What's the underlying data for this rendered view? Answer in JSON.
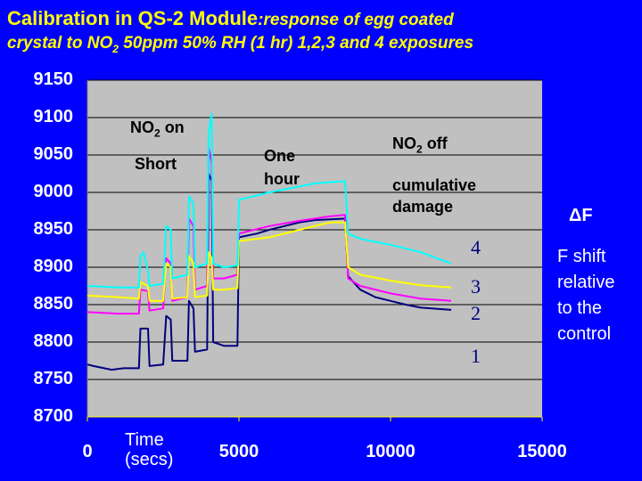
{
  "header": {
    "title_main": "Calibration in QS-2 Module",
    "title_sub": ":response of egg coated",
    "line2_a": "crystal to NO",
    "line2_sub": "2",
    "line2_b": " 50ppm 50% RH (1 hr) 1,2,3 and 4 exposures"
  },
  "annotations": {
    "no2_on_a": "NO",
    "no2_on_sub": "2",
    "no2_on_b": " on",
    "short": "Short",
    "one": "One",
    "hour": "hour",
    "no2_off_a": "NO",
    "no2_off_sub": "2",
    "no2_off_b": " off",
    "cumulative": "cumulative",
    "damage": "damage",
    "series_4": "4",
    "series_3": "3",
    "series_2": "2",
    "series_1": "1"
  },
  "side_note": {
    "delta_f": "ΔF",
    "line1": "F shift",
    "line2": "relative",
    "line3": "to the",
    "line4": "control"
  },
  "x_axis_title": {
    "line1": "Time",
    "line2": "(secs)"
  },
  "colors": {
    "background": "#0000ff",
    "plot_area": "#c0c0c0",
    "title": "#ffff00",
    "series_1": "#000080",
    "series_2": "#ff00ff",
    "series_3": "#ffff00",
    "series_4": "#00ffff"
  },
  "chart_data": {
    "type": "line",
    "title": "Calibration in QS-2 Module",
    "xlabel": "Time (secs)",
    "ylabel": "",
    "xlim": [
      0,
      15000
    ],
    "ylim": [
      8700,
      9150
    ],
    "xticks": [
      0,
      5000,
      10000,
      15000
    ],
    "yticks": [
      8700,
      8750,
      8800,
      8850,
      8900,
      8950,
      9000,
      9050,
      9100,
      9150
    ],
    "grid": true,
    "series": [
      {
        "name": "1",
        "points": [
          [
            0,
            8770
          ],
          [
            200,
            8768
          ],
          [
            800,
            8763
          ],
          [
            1200,
            8765
          ],
          [
            1700,
            8765
          ],
          [
            1750,
            8818
          ],
          [
            2000,
            8818
          ],
          [
            2050,
            8768
          ],
          [
            2500,
            8770
          ],
          [
            2600,
            8835
          ],
          [
            2750,
            8830
          ],
          [
            2800,
            8775
          ],
          [
            3300,
            8775
          ],
          [
            3350,
            8855
          ],
          [
            3500,
            8845
          ],
          [
            3550,
            8787
          ],
          [
            3950,
            8790
          ],
          [
            4000,
            9025
          ],
          [
            4100,
            9015
          ],
          [
            4150,
            8800
          ],
          [
            4500,
            8795
          ],
          [
            4950,
            8795
          ],
          [
            5000,
            8940
          ],
          [
            5600,
            8945
          ],
          [
            6000,
            8950
          ],
          [
            7000,
            8960
          ],
          [
            7500,
            8963
          ],
          [
            8500,
            8965
          ],
          [
            8600,
            8888
          ],
          [
            9000,
            8870
          ],
          [
            9500,
            8860
          ],
          [
            10000,
            8855
          ],
          [
            10500,
            8850
          ],
          [
            11000,
            8846
          ],
          [
            12000,
            8843
          ]
        ]
      },
      {
        "name": "2",
        "points": [
          [
            0,
            8840
          ],
          [
            1000,
            8838
          ],
          [
            1700,
            8838
          ],
          [
            1750,
            8870
          ],
          [
            2000,
            8868
          ],
          [
            2050,
            8842
          ],
          [
            2500,
            8845
          ],
          [
            2600,
            8912
          ],
          [
            2750,
            8905
          ],
          [
            2800,
            8855
          ],
          [
            3300,
            8860
          ],
          [
            3350,
            8965
          ],
          [
            3500,
            8955
          ],
          [
            3550,
            8870
          ],
          [
            3950,
            8875
          ],
          [
            4000,
            9060
          ],
          [
            4100,
            9040
          ],
          [
            4150,
            8885
          ],
          [
            4500,
            8885
          ],
          [
            4950,
            8890
          ],
          [
            5000,
            8945
          ],
          [
            6000,
            8955
          ],
          [
            7000,
            8962
          ],
          [
            8000,
            8968
          ],
          [
            8500,
            8970
          ],
          [
            8600,
            8885
          ],
          [
            9000,
            8875
          ],
          [
            10000,
            8865
          ],
          [
            11000,
            8858
          ],
          [
            12000,
            8855
          ]
        ]
      },
      {
        "name": "3",
        "points": [
          [
            0,
            8862
          ],
          [
            1000,
            8860
          ],
          [
            1700,
            8858
          ],
          [
            1750,
            8880
          ],
          [
            2000,
            8875
          ],
          [
            2050,
            8855
          ],
          [
            2500,
            8855
          ],
          [
            2600,
            8905
          ],
          [
            2750,
            8900
          ],
          [
            2800,
            8858
          ],
          [
            3300,
            8860
          ],
          [
            3350,
            8915
          ],
          [
            3500,
            8905
          ],
          [
            3550,
            8860
          ],
          [
            3950,
            8862
          ],
          [
            4000,
            8920
          ],
          [
            4100,
            8912
          ],
          [
            4150,
            8870
          ],
          [
            4500,
            8870
          ],
          [
            4950,
            8872
          ],
          [
            5000,
            8935
          ],
          [
            6000,
            8940
          ],
          [
            7000,
            8950
          ],
          [
            8000,
            8960
          ],
          [
            8500,
            8960
          ],
          [
            8600,
            8900
          ],
          [
            9000,
            8890
          ],
          [
            10000,
            8882
          ],
          [
            11000,
            8876
          ],
          [
            12000,
            8873
          ]
        ]
      },
      {
        "name": "4",
        "points": [
          [
            0,
            8875
          ],
          [
            1000,
            8873
          ],
          [
            1700,
            8873
          ],
          [
            1750,
            8915
          ],
          [
            1850,
            8920
          ],
          [
            2000,
            8895
          ],
          [
            2050,
            8875
          ],
          [
            2500,
            8878
          ],
          [
            2600,
            8955
          ],
          [
            2750,
            8950
          ],
          [
            2800,
            8885
          ],
          [
            3300,
            8890
          ],
          [
            3350,
            8995
          ],
          [
            3500,
            8985
          ],
          [
            3550,
            8900
          ],
          [
            3950,
            8905
          ],
          [
            4000,
            9080
          ],
          [
            4100,
            9105
          ],
          [
            4150,
            8905
          ],
          [
            4500,
            8900
          ],
          [
            4950,
            8902
          ],
          [
            5000,
            8990
          ],
          [
            5500,
            8995
          ],
          [
            6000,
            9000
          ],
          [
            7000,
            9008
          ],
          [
            7500,
            9012
          ],
          [
            8500,
            9015
          ],
          [
            8600,
            8945
          ],
          [
            9000,
            8938
          ],
          [
            10000,
            8930
          ],
          [
            11000,
            8920
          ],
          [
            12000,
            8905
          ]
        ]
      }
    ]
  }
}
